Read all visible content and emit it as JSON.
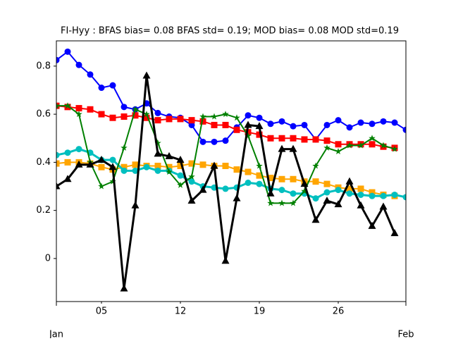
{
  "chart_data": {
    "type": "line",
    "title": "FI-Hyy   : BFAS bias= 0.08 BFAS std= 0.19; MOD bias= 0.08 MOD std=0.19",
    "xlim": [
      1,
      32
    ],
    "xticks": [
      {
        "value": 5,
        "label": "05"
      },
      {
        "value": 12,
        "label": "12"
      },
      {
        "value": 19,
        "label": "19"
      },
      {
        "value": 26,
        "label": "26"
      }
    ],
    "xticks_major": [
      {
        "value": 1,
        "label": "Jan"
      },
      {
        "value": 32,
        "label": "Feb"
      }
    ],
    "ylim": [
      -0.179,
      0.905
    ],
    "yticks": [
      0.0,
      0.2,
      0.4,
      0.6,
      0.8
    ],
    "series": [
      {
        "color": "#0000ff",
        "marker": "circle",
        "linewidth": 2,
        "x": [
          1,
          2,
          3,
          4,
          5,
          6,
          7,
          8,
          9,
          10,
          11,
          12,
          13,
          14,
          15,
          16,
          17,
          18,
          19,
          20,
          21,
          22,
          23,
          24,
          25,
          26,
          27,
          28,
          29,
          30,
          31,
          32
        ],
        "values": [
          0.825,
          0.86,
          0.805,
          0.765,
          0.71,
          0.72,
          0.63,
          0.62,
          0.645,
          0.605,
          0.59,
          0.585,
          0.555,
          0.485,
          0.485,
          0.49,
          0.545,
          0.595,
          0.585,
          0.56,
          0.57,
          0.55,
          0.555,
          0.495,
          0.555,
          0.575,
          0.545,
          0.565,
          0.56,
          0.57,
          0.565,
          0.535
        ]
      },
      {
        "color": "#ff0000",
        "marker": "square",
        "linewidth": 2,
        "x": [
          1,
          2,
          3,
          4,
          5,
          6,
          7,
          8,
          9,
          10,
          11,
          12,
          13,
          14,
          15,
          16,
          17,
          18,
          19,
          20,
          21,
          22,
          23,
          24,
          25,
          26,
          27,
          28,
          29,
          30,
          31
        ],
        "values": [
          0.635,
          0.63,
          0.625,
          0.62,
          0.6,
          0.585,
          0.59,
          0.595,
          0.585,
          0.575,
          0.58,
          0.58,
          0.575,
          0.57,
          0.555,
          0.555,
          0.535,
          0.525,
          0.515,
          0.5,
          0.5,
          0.5,
          0.495,
          0.495,
          0.49,
          0.475,
          0.475,
          0.475,
          0.475,
          0.465,
          0.46
        ]
      },
      {
        "color": "#ffa500",
        "marker": "square",
        "linewidth": 2,
        "x": [
          1,
          2,
          3,
          4,
          5,
          6,
          7,
          8,
          9,
          10,
          11,
          12,
          13,
          14,
          15,
          16,
          17,
          18,
          19,
          20,
          21,
          22,
          23,
          24,
          25,
          26,
          27,
          28,
          29,
          30,
          31
        ],
        "values": [
          0.395,
          0.4,
          0.4,
          0.395,
          0.38,
          0.37,
          0.38,
          0.39,
          0.385,
          0.385,
          0.38,
          0.385,
          0.395,
          0.39,
          0.385,
          0.385,
          0.37,
          0.36,
          0.345,
          0.335,
          0.33,
          0.33,
          0.32,
          0.32,
          0.31,
          0.295,
          0.29,
          0.29,
          0.275,
          0.265,
          0.26
        ]
      },
      {
        "color": "#00bfbf",
        "marker": "circle",
        "linewidth": 3,
        "x": [
          1,
          2,
          3,
          4,
          5,
          6,
          7,
          8,
          9,
          10,
          11,
          12,
          13,
          14,
          15,
          16,
          17,
          18,
          19,
          20,
          21,
          22,
          23,
          24,
          25,
          26,
          27,
          28,
          29,
          30,
          31,
          32
        ],
        "values": [
          0.43,
          0.44,
          0.455,
          0.44,
          0.41,
          0.41,
          0.365,
          0.365,
          0.38,
          0.365,
          0.365,
          0.345,
          0.32,
          0.3,
          0.295,
          0.29,
          0.295,
          0.315,
          0.31,
          0.29,
          0.285,
          0.27,
          0.27,
          0.25,
          0.275,
          0.285,
          0.27,
          0.265,
          0.26,
          0.26,
          0.265,
          0.255
        ]
      },
      {
        "color": "#008000",
        "marker": "star",
        "linewidth": 2,
        "x": [
          1,
          2,
          3,
          4,
          5,
          6,
          7,
          8,
          9,
          10,
          11,
          12,
          13,
          14,
          15,
          16,
          17,
          18,
          19,
          20,
          21,
          22,
          23,
          24,
          25,
          26,
          27,
          28,
          29,
          30,
          31
        ],
        "values": [
          0.635,
          0.635,
          0.6,
          0.4,
          0.3,
          0.32,
          0.46,
          0.62,
          0.6,
          0.48,
          0.36,
          0.305,
          0.34,
          0.59,
          0.59,
          0.6,
          0.585,
          0.51,
          0.385,
          0.23,
          0.23,
          0.23,
          0.28,
          0.385,
          0.46,
          0.445,
          0.47,
          0.47,
          0.5,
          0.47,
          0.455
        ]
      },
      {
        "color": "#000000",
        "marker": "triangle",
        "linewidth": 3,
        "x": [
          1,
          2,
          3,
          4,
          5,
          6,
          7,
          8,
          9,
          10,
          11,
          12,
          13,
          14,
          15,
          16,
          17,
          18,
          19,
          20,
          21,
          22,
          23,
          24,
          25,
          26,
          27,
          28,
          29,
          30,
          31
        ],
        "values": [
          0.3,
          0.33,
          0.39,
          0.39,
          0.41,
          0.38,
          -0.125,
          0.22,
          0.76,
          0.435,
          0.425,
          0.41,
          0.24,
          0.285,
          0.385,
          -0.01,
          0.25,
          0.555,
          0.55,
          0.27,
          0.455,
          0.455,
          0.31,
          0.16,
          0.24,
          0.225,
          0.32,
          0.22,
          0.135,
          0.215,
          0.105
        ]
      }
    ]
  }
}
